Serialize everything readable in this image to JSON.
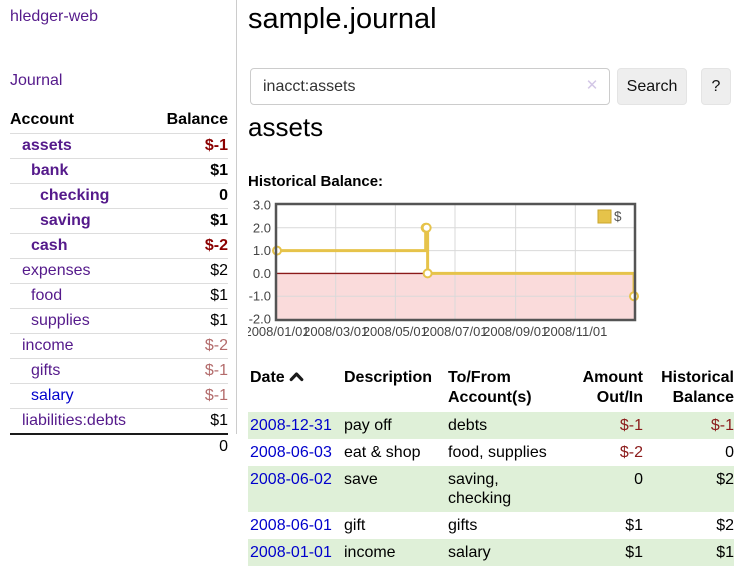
{
  "brand": "hledger-web",
  "nav": {
    "journal_label": "Journal"
  },
  "sidebar_table": {
    "headers": {
      "account": "Account",
      "balance": "Balance"
    },
    "rows": [
      {
        "name": "assets",
        "indent": 1,
        "bold": true,
        "balance": "$-1",
        "negative": true,
        "link_color": "purple"
      },
      {
        "name": "bank",
        "indent": 2,
        "bold": true,
        "balance": "$1",
        "negative": false,
        "link_color": "purple"
      },
      {
        "name": "checking",
        "indent": 3,
        "bold": true,
        "balance": "0",
        "negative": false,
        "link_color": "purple"
      },
      {
        "name": "saving",
        "indent": 3,
        "bold": true,
        "balance": "$1",
        "negative": false,
        "link_color": "purple"
      },
      {
        "name": "cash",
        "indent": 2,
        "bold": true,
        "balance": "$-2",
        "negative": true,
        "link_color": "purple"
      },
      {
        "name": "expenses",
        "indent": 1,
        "bold": false,
        "balance": "$2",
        "negative": false,
        "link_color": "purple"
      },
      {
        "name": "food",
        "indent": 2,
        "bold": false,
        "balance": "$1",
        "negative": false,
        "link_color": "purple"
      },
      {
        "name": "supplies",
        "indent": 2,
        "bold": false,
        "balance": "$1",
        "negative": false,
        "link_color": "purple"
      },
      {
        "name": "income",
        "indent": 1,
        "bold": false,
        "balance": "$-2",
        "negative": true,
        "link_color": "purple"
      },
      {
        "name": "gifts",
        "indent": 2,
        "bold": false,
        "balance": "$-1",
        "negative": true,
        "link_color": "purple"
      },
      {
        "name": "salary",
        "indent": 2,
        "bold": false,
        "balance": "$-1",
        "negative": true,
        "link_color": "blue"
      },
      {
        "name": "liabilities:debts",
        "indent": 1,
        "bold": false,
        "balance": "$1",
        "negative": false,
        "link_color": "purple"
      }
    ],
    "total": "0"
  },
  "main": {
    "title": "sample.journal",
    "search": {
      "value": "inacct:assets",
      "clear_icon": "✕",
      "button_label": "Search",
      "help_label": "?"
    },
    "account_heading": "assets"
  },
  "chart_data": {
    "type": "line",
    "step": true,
    "title": "Historical Balance:",
    "x_unit": "days since 2008-01-01",
    "xlim": [
      0,
      365
    ],
    "ylim": [
      -2,
      3
    ],
    "y_ticks": [
      {
        "value": 3,
        "label": "3.0"
      },
      {
        "value": 2,
        "label": "2.0"
      },
      {
        "value": 1,
        "label": "1.0"
      },
      {
        "value": 0,
        "label": "0.0"
      },
      {
        "value": -1,
        "label": "-1.0"
      },
      {
        "value": -2,
        "label": "-2.0"
      }
    ],
    "x_ticks": [
      {
        "pos": 0,
        "label": "2008/01/01"
      },
      {
        "pos": 60,
        "label": "2008/03/01"
      },
      {
        "pos": 121,
        "label": "2008/05/01"
      },
      {
        "pos": 182,
        "label": "2008/07/01"
      },
      {
        "pos": 244,
        "label": "2008/09/01"
      },
      {
        "pos": 305,
        "label": "2008/11/01"
      }
    ],
    "series": [
      {
        "name": "$",
        "color": "#e6c34a",
        "marker_fill": "#ffffff",
        "points": [
          {
            "x": 0,
            "y": 1,
            "date": "2008-01-01"
          },
          {
            "x": 152,
            "y": 2,
            "date": "2008-06-01"
          },
          {
            "x": 153,
            "y": 2,
            "date": "2008-06-02"
          },
          {
            "x": 154,
            "y": 0,
            "date": "2008-06-03"
          },
          {
            "x": 365,
            "y": -1,
            "date": "2008-12-31"
          }
        ]
      }
    ],
    "legend": {
      "position": "top-right",
      "entries": [
        {
          "label": "$",
          "color": "#e6c34a"
        }
      ]
    },
    "grid": true,
    "colors": {
      "grid": "#d9d9d9",
      "zero_line": "#8b1a1a",
      "negative_fill": "#fadbdb",
      "border": "#545454",
      "tick_text": "#444444",
      "legend_text": "#545454",
      "swatch_border": "#c9a62c"
    }
  },
  "transactions": {
    "headers": {
      "date": "Date",
      "description": "Description",
      "accounts": "To/From Account(s)",
      "amount": "Amount Out/In",
      "balance": "Historical Balance"
    },
    "rows": [
      {
        "date": "2008-12-31",
        "description": "pay off",
        "accounts": "debts",
        "amount": "$-1",
        "amount_negative": true,
        "balance": "$-1",
        "balance_negative": true
      },
      {
        "date": "2008-06-03",
        "description": "eat & shop",
        "accounts": "food, supplies",
        "amount": "$-2",
        "amount_negative": true,
        "balance": "0",
        "balance_negative": false
      },
      {
        "date": "2008-06-02",
        "description": "save",
        "accounts": "saving,\nchecking",
        "amount": "0",
        "amount_negative": false,
        "balance": "$2",
        "balance_negative": false
      },
      {
        "date": "2008-06-01",
        "description": "gift",
        "accounts": "gifts",
        "amount": "$1",
        "amount_negative": false,
        "balance": "$2",
        "balance_negative": false
      },
      {
        "date": "2008-01-01",
        "description": "income",
        "accounts": "salary",
        "amount": "$1",
        "amount_negative": false,
        "balance": "$1",
        "balance_negative": false
      }
    ]
  },
  "colors": {
    "link_purple": "#551a8b",
    "link_blue": "#0000cc",
    "negative_bold": "#8b0000",
    "negative_soft": "#b36b6b",
    "negative_table": "#8b1a1a",
    "row_stripe_green": "#dff0d8",
    "series_gold": "#e6c34a"
  }
}
